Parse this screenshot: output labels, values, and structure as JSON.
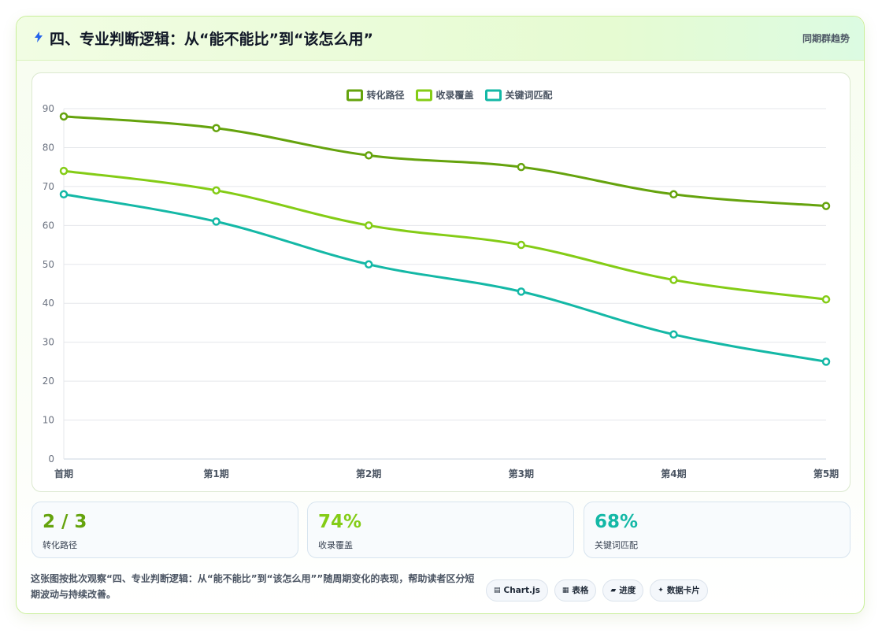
{
  "header": {
    "icon": "lightning-icon",
    "title": "四、专业判断逻辑：从“能不能比”到“该怎么用”",
    "tag": "同期群趋势"
  },
  "chart_data": {
    "type": "line",
    "x": [
      "首期",
      "第1期",
      "第2期",
      "第3期",
      "第4期",
      "第5期"
    ],
    "series": [
      {
        "name": "转化路径",
        "values": [
          88,
          85,
          78,
          75,
          68,
          65
        ],
        "color": "#65a30d"
      },
      {
        "name": "收录覆盖",
        "values": [
          74,
          69,
          60,
          55,
          46,
          41
        ],
        "color": "#84cc16"
      },
      {
        "name": "关键词匹配",
        "values": [
          68,
          61,
          50,
          43,
          32,
          25
        ],
        "color": "#14b8a6"
      }
    ],
    "ylim": [
      0,
      90
    ],
    "yticks": [
      0,
      10,
      20,
      30,
      40,
      50,
      60,
      70,
      80,
      90
    ],
    "grid": true,
    "legend": "top-center",
    "smooth": true
  },
  "stats": [
    {
      "value": "2 / 3",
      "label": "转化路径",
      "color": "#65a30d"
    },
    {
      "value": "74%",
      "label": "收录覆盖",
      "color": "#84cc16"
    },
    {
      "value": "68%",
      "label": "关键词匹配",
      "color": "#14b8a6"
    }
  ],
  "footnote": "这张图按批次观察“四、专业判断逻辑：从“能不能比”到“该怎么用””随周期变化的表现，帮助读者区分短期波动与持续改善。",
  "pills": [
    {
      "icon": "chart-icon",
      "label": "Chart.js"
    },
    {
      "icon": "table-icon",
      "label": "表格"
    },
    {
      "icon": "progress-icon",
      "label": "进度"
    },
    {
      "icon": "sparkle-icon",
      "label": "数据卡片"
    }
  ]
}
